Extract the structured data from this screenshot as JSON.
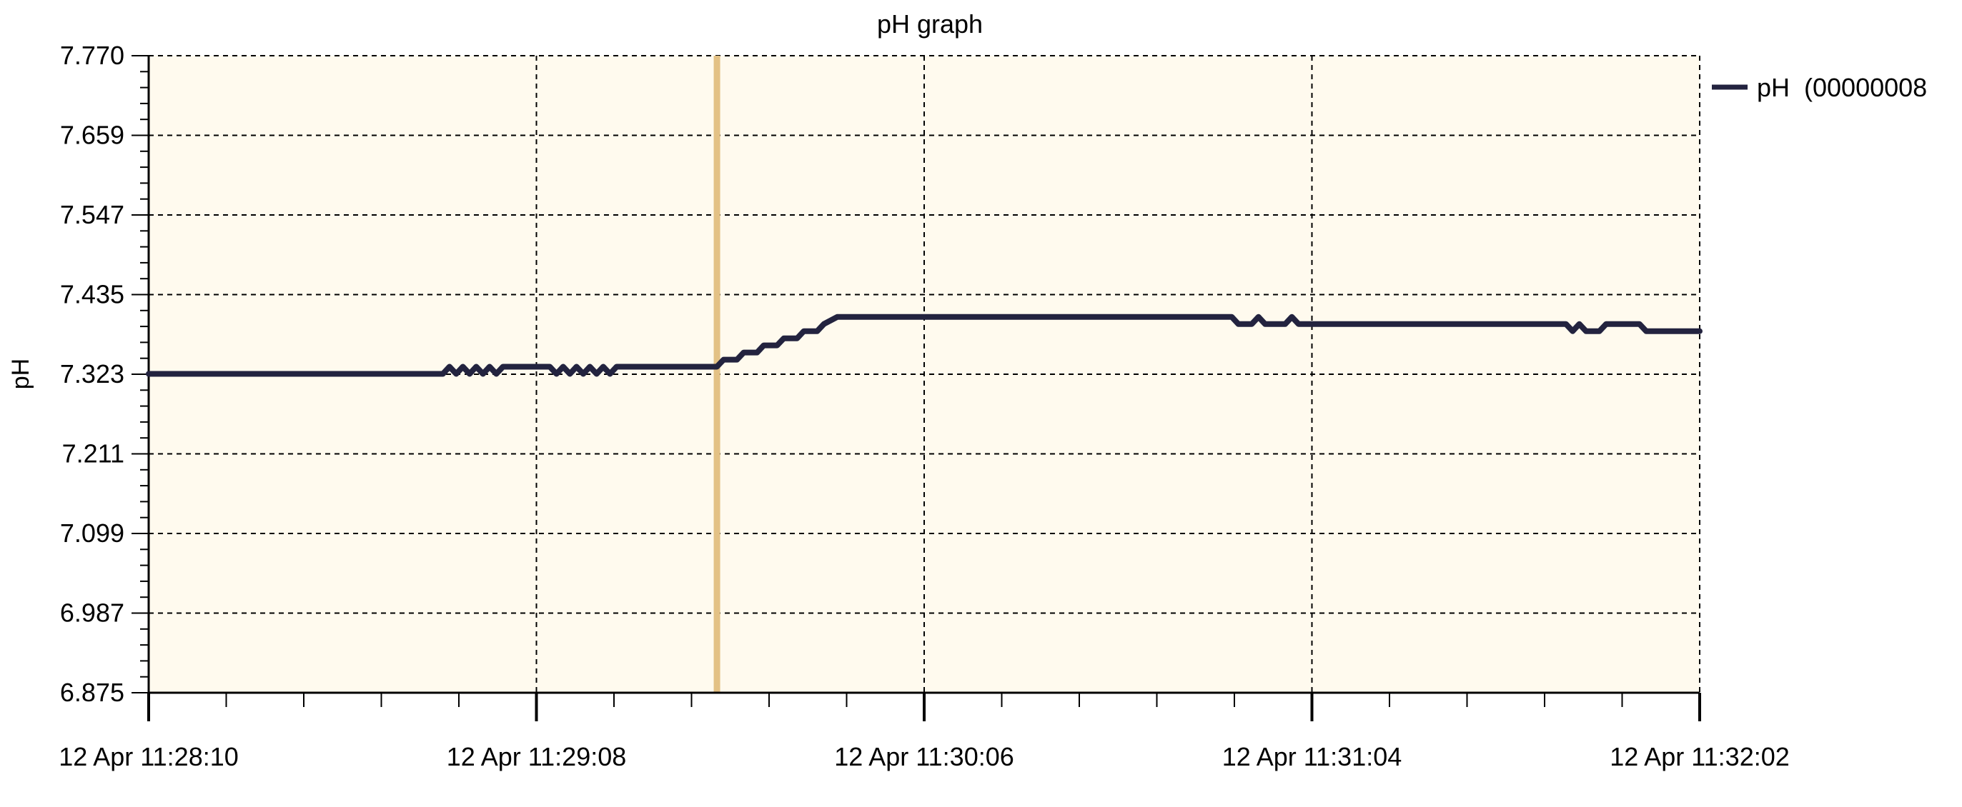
{
  "chart_data": {
    "type": "line",
    "title": "pH graph",
    "xlabel": "",
    "ylabel": "pH",
    "ylim": [
      6.875,
      7.77
    ],
    "yticks": [
      "7.770",
      "7.659",
      "7.547",
      "7.435",
      "7.323",
      "7.211",
      "7.099",
      "6.987",
      "6.875"
    ],
    "xlim": [
      "12 Apr 11:28:10",
      "12 Apr 11:32:02"
    ],
    "xticks": [
      "12 Apr 11:28:10",
      "12 Apr 11:29:08",
      "12 Apr 11:30:06",
      "12 Apr 11:31:04",
      "12 Apr 11:32:02"
    ],
    "grid": true,
    "legend": "top-right",
    "marker_time": "12 Apr 11:29:35",
    "series": [
      {
        "name": "pH  (00000008",
        "color": "#23233f",
        "x": [
          "12 Apr 11:28:10",
          "12 Apr 11:28:54",
          "12 Apr 11:28:55",
          "12 Apr 11:28:56",
          "12 Apr 11:28:57",
          "12 Apr 11:28:58",
          "12 Apr 11:28:59",
          "12 Apr 11:29:00",
          "12 Apr 11:29:01",
          "12 Apr 11:29:02",
          "12 Apr 11:29:03",
          "12 Apr 11:29:04",
          "12 Apr 11:29:10",
          "12 Apr 11:29:11",
          "12 Apr 11:29:12",
          "12 Apr 11:29:13",
          "12 Apr 11:29:14",
          "12 Apr 11:29:15",
          "12 Apr 11:29:16",
          "12 Apr 11:29:17",
          "12 Apr 11:29:18",
          "12 Apr 11:29:19",
          "12 Apr 11:29:20",
          "12 Apr 11:29:21",
          "12 Apr 11:29:35",
          "12 Apr 11:29:36",
          "12 Apr 11:29:38",
          "12 Apr 11:29:39",
          "12 Apr 11:29:41",
          "12 Apr 11:29:42",
          "12 Apr 11:29:44",
          "12 Apr 11:29:45",
          "12 Apr 11:29:47",
          "12 Apr 11:29:48",
          "12 Apr 11:29:50",
          "12 Apr 11:29:51",
          "12 Apr 11:29:53",
          "12 Apr 11:30:52",
          "12 Apr 11:30:53",
          "12 Apr 11:30:55",
          "12 Apr 11:30:56",
          "12 Apr 11:30:57",
          "12 Apr 11:31:00",
          "12 Apr 11:31:01",
          "12 Apr 11:31:02",
          "12 Apr 11:31:42",
          "12 Apr 11:31:43",
          "12 Apr 11:31:44",
          "12 Apr 11:31:45",
          "12 Apr 11:31:47",
          "12 Apr 11:31:48",
          "12 Apr 11:31:53",
          "12 Apr 11:31:54",
          "12 Apr 11:32:02"
        ],
        "y": [
          7.323,
          7.323,
          7.333,
          7.323,
          7.333,
          7.323,
          7.333,
          7.323,
          7.333,
          7.323,
          7.333,
          7.333,
          7.333,
          7.323,
          7.333,
          7.323,
          7.333,
          7.323,
          7.333,
          7.323,
          7.333,
          7.323,
          7.333,
          7.333,
          7.333,
          7.343,
          7.343,
          7.353,
          7.353,
          7.363,
          7.363,
          7.373,
          7.373,
          7.383,
          7.383,
          7.393,
          7.403,
          7.403,
          7.393,
          7.393,
          7.403,
          7.393,
          7.393,
          7.403,
          7.393,
          7.393,
          7.383,
          7.393,
          7.383,
          7.383,
          7.393,
          7.393,
          7.383,
          7.383
        ]
      }
    ]
  }
}
